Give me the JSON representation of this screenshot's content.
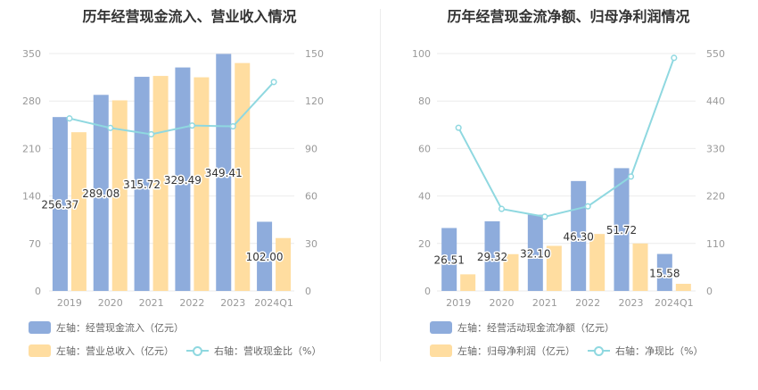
{
  "colors": {
    "bar1": "#8eacdc",
    "bar2": "#ffdda0",
    "line": "#8fd8e0",
    "axis_text": "#999999",
    "grid": "#ebebeb",
    "label": "#333333"
  },
  "chart_data": [
    {
      "type": "bar",
      "title": "历年经营现金流入、营业收入情况",
      "categories": [
        "2019",
        "2020",
        "2021",
        "2022",
        "2023",
        "2024Q1"
      ],
      "series": [
        {
          "name": "左轴：经营现金流入（亿元）",
          "axis": "left",
          "kind": "bar",
          "values": [
            256.37,
            289.08,
            315.72,
            329.49,
            349.41,
            102.0
          ],
          "labels": [
            "256.37",
            "289.08",
            "315.72",
            "329.49",
            "349.41",
            "102.00"
          ]
        },
        {
          "name": "左轴：营业总收入（亿元）",
          "axis": "left",
          "kind": "bar",
          "values": [
            234,
            281,
            317,
            315,
            336,
            78
          ]
        },
        {
          "name": "右轴：营收现金比（%）",
          "axis": "right",
          "kind": "line",
          "values": [
            109,
            103,
            99,
            104.5,
            104,
            132
          ]
        }
      ],
      "left_axis": {
        "min": 0,
        "max": 350,
        "ticks": [
          "0",
          "70",
          "140",
          "210",
          "280",
          "350"
        ]
      },
      "right_axis": {
        "min": 0,
        "max": 150,
        "ticks": [
          "0",
          "30",
          "60",
          "90",
          "120",
          "150"
        ]
      }
    },
    {
      "type": "bar",
      "title": "历年经营现金流净额、归母净利润情况",
      "categories": [
        "2019",
        "2020",
        "2021",
        "2022",
        "2023",
        "2024Q1"
      ],
      "series": [
        {
          "name": "左轴：经营活动现金流净额（亿元）",
          "axis": "left",
          "kind": "bar",
          "values": [
            26.51,
            29.32,
            32.1,
            46.3,
            51.72,
            15.58
          ],
          "labels": [
            "26.51",
            "29.32",
            "32.10",
            "46.30",
            "51.72",
            "15.58"
          ]
        },
        {
          "name": "左轴：归母净利润（亿元）",
          "axis": "left",
          "kind": "bar",
          "values": [
            7,
            15.5,
            19,
            24,
            20,
            3
          ]
        },
        {
          "name": "右轴：净现比（%）",
          "axis": "right",
          "kind": "line",
          "values": [
            378,
            190,
            172,
            196,
            265,
            540
          ]
        }
      ],
      "left_axis": {
        "min": 0,
        "max": 100,
        "ticks": [
          "0",
          "20",
          "40",
          "60",
          "80",
          "100"
        ]
      },
      "right_axis": {
        "min": 0,
        "max": 550,
        "ticks": [
          "0",
          "110",
          "220",
          "330",
          "440",
          "550"
        ]
      }
    }
  ]
}
